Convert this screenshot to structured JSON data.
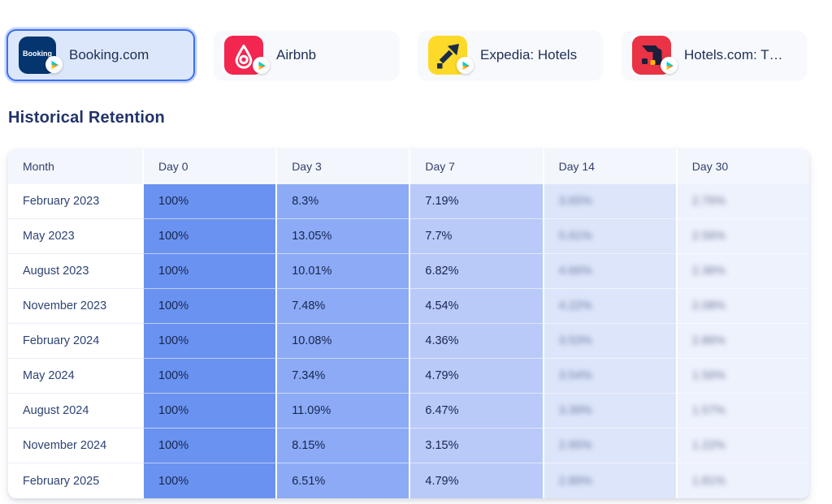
{
  "apps": [
    {
      "name": "Booking.com",
      "icon": "booking",
      "icon_text": "Booking",
      "selected": true,
      "store": "google-play"
    },
    {
      "name": "Airbnb",
      "icon": "airbnb",
      "selected": false,
      "store": "google-play"
    },
    {
      "name": "Expedia: Hotels",
      "icon": "expedia",
      "selected": false,
      "store": "google-play"
    },
    {
      "name": "Hotels.com: T…",
      "icon": "hotels",
      "selected": false,
      "store": "google-play"
    }
  ],
  "section_title": "Historical Retention",
  "table": {
    "columns": [
      "Month",
      "Day 0",
      "Day 3",
      "Day 7",
      "Day 14",
      "Day 30"
    ],
    "locked_columns": [
      "Day 14",
      "Day 30"
    ],
    "rows": [
      {
        "month": "February 2023",
        "day0": "100%",
        "day3": "8.3%",
        "day7": "7.19%",
        "day14": "3.65%",
        "day30": "2.76%"
      },
      {
        "month": "May 2023",
        "day0": "100%",
        "day3": "13.05%",
        "day7": "7.7%",
        "day14": "5.91%",
        "day30": "2.56%"
      },
      {
        "month": "August 2023",
        "day0": "100%",
        "day3": "10.01%",
        "day7": "6.82%",
        "day14": "4.66%",
        "day30": "2.36%"
      },
      {
        "month": "November 2023",
        "day0": "100%",
        "day3": "7.48%",
        "day7": "4.54%",
        "day14": "4.22%",
        "day30": "2.08%"
      },
      {
        "month": "February 2024",
        "day0": "100%",
        "day3": "10.08%",
        "day7": "4.36%",
        "day14": "3.53%",
        "day30": "2.86%"
      },
      {
        "month": "May 2024",
        "day0": "100%",
        "day3": "7.34%",
        "day7": "4.79%",
        "day14": "3.54%",
        "day30": "1.56%"
      },
      {
        "month": "August 2024",
        "day0": "100%",
        "day3": "11.09%",
        "day7": "6.47%",
        "day14": "3.39%",
        "day30": "1.57%"
      },
      {
        "month": "November 2024",
        "day0": "100%",
        "day3": "8.15%",
        "day7": "3.15%",
        "day14": "2.95%",
        "day30": "1.22%"
      },
      {
        "month": "February 2025",
        "day0": "100%",
        "day3": "6.51%",
        "day7": "4.79%",
        "day14": "2.89%",
        "day30": "1.81%"
      }
    ]
  },
  "colors": {
    "selected_card_border": "#3c6ef0",
    "selected_card_bg": "#dce7fb",
    "card_bg": "#f7f9fd",
    "day0": "#6a92f0",
    "day3": "#8caaf5",
    "day7": "#b9c9f8",
    "day14": "#dde5fb",
    "day30": "#eef2fd",
    "booking_icon": "#04356e",
    "airbnb_icon": "#f32650",
    "expedia_icon": "#fdd929",
    "hotels_icon": "#ea3345"
  }
}
